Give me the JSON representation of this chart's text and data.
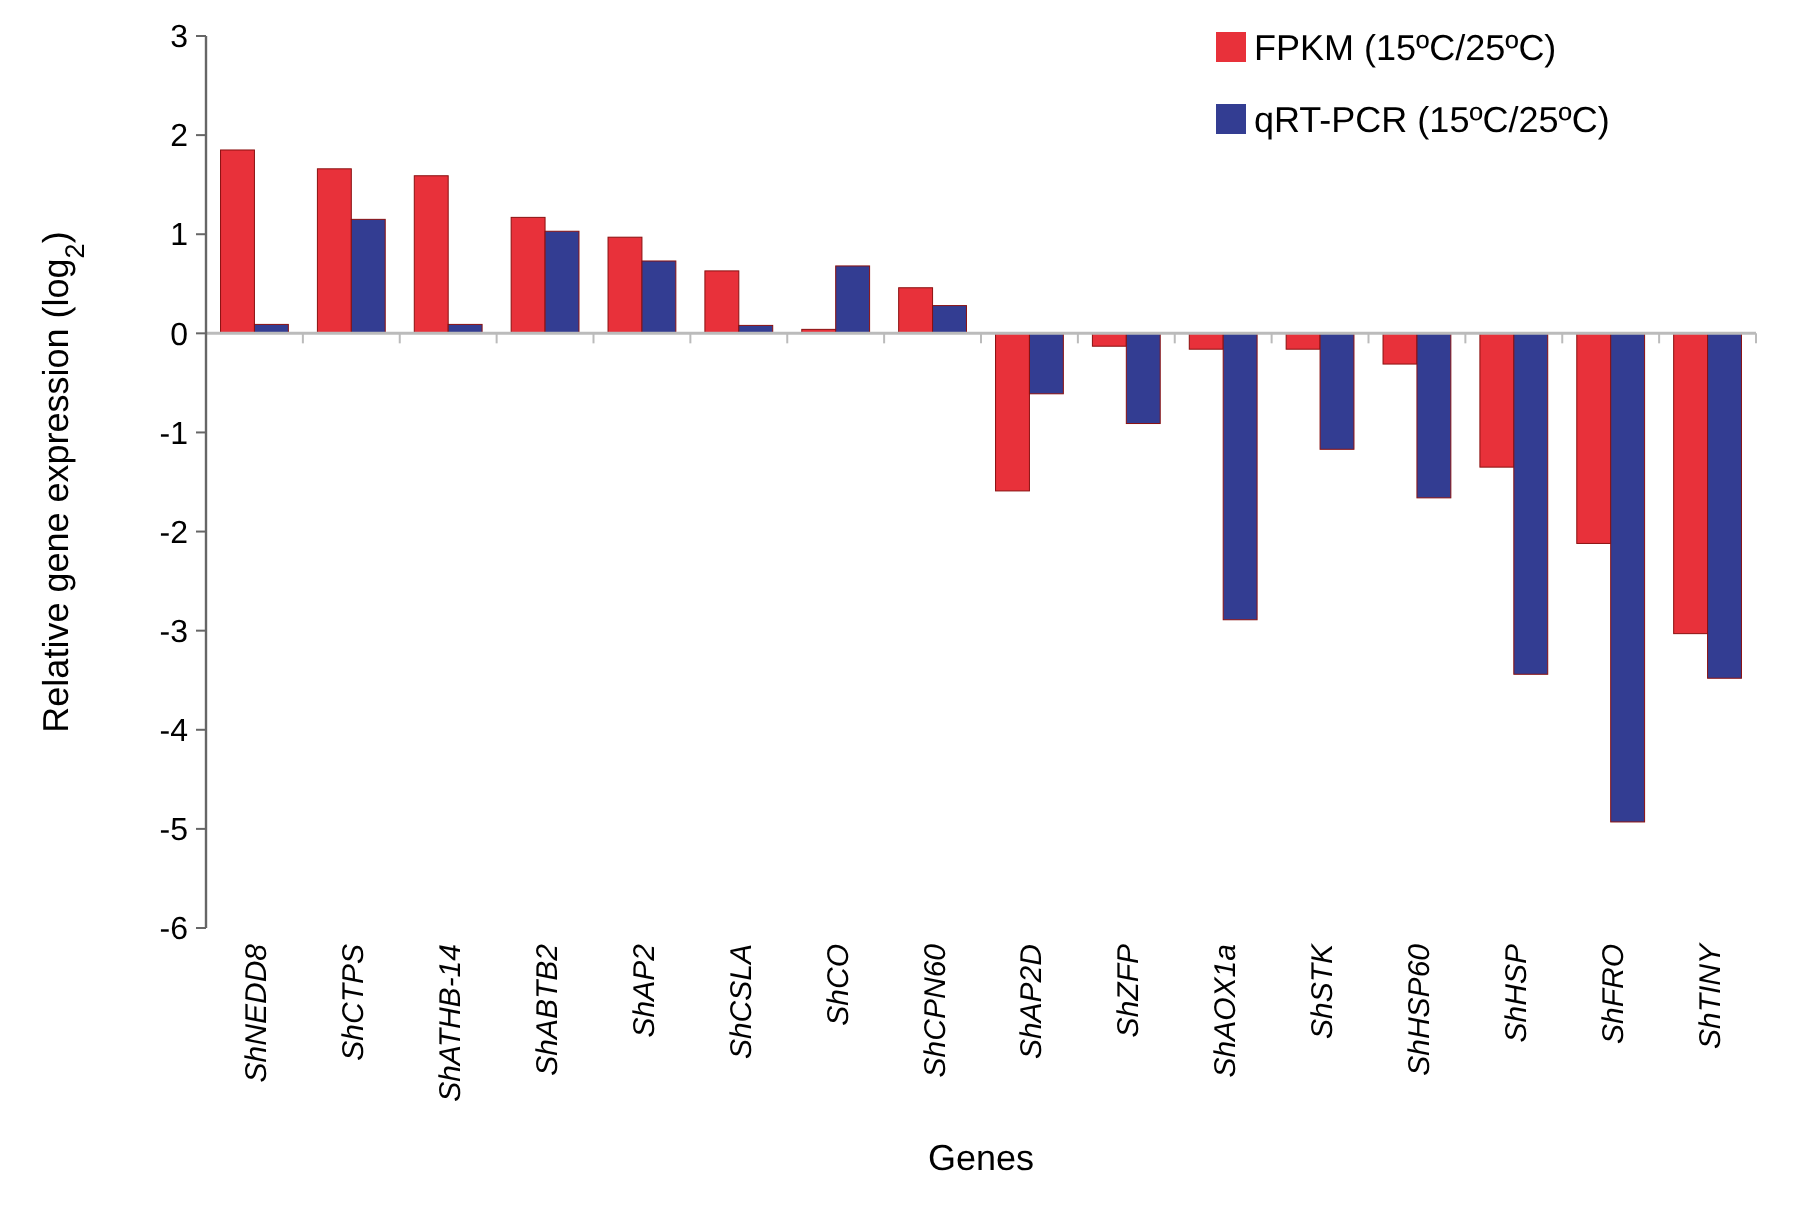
{
  "chart_data": {
    "type": "bar",
    "xlabel": "Genes",
    "ylabel": "Relative gene expression (log$_{2}$)",
    "categories": [
      "ShNEDD8",
      "ShCTPS",
      "ShATHB-14",
      "ShABTB2",
      "ShAP2",
      "ShCSLA",
      "ShCO",
      "ShCPN60",
      "ShAP2D",
      "ShZFP",
      "ShAOX1a",
      "ShSTK",
      "ShHSP60",
      "ShHSP",
      "ShFRO",
      "ShTINY"
    ],
    "series": [
      {
        "name": "FPKM (15ºC/25ºC)",
        "color": "#e8313a",
        "values": [
          1.85,
          1.66,
          1.59,
          1.17,
          0.97,
          0.63,
          0.04,
          0.46,
          -1.59,
          -0.13,
          -0.16,
          -0.16,
          -0.31,
          -1.35,
          -2.12,
          -3.03
        ]
      },
      {
        "name": "qRT-PCR (15ºC/25ºC)",
        "color": "#333d92",
        "values": [
          0.09,
          1.15,
          0.09,
          1.03,
          0.73,
          0.08,
          0.68,
          0.28,
          -0.61,
          -0.91,
          -2.89,
          -1.17,
          -1.66,
          -3.44,
          -4.93,
          -3.48
        ]
      }
    ],
    "ylim": [
      -6,
      3
    ],
    "yticks": [
      -6,
      -5,
      -4,
      -3,
      -2,
      -1,
      0,
      1,
      2,
      3
    ],
    "legend": "top right"
  }
}
